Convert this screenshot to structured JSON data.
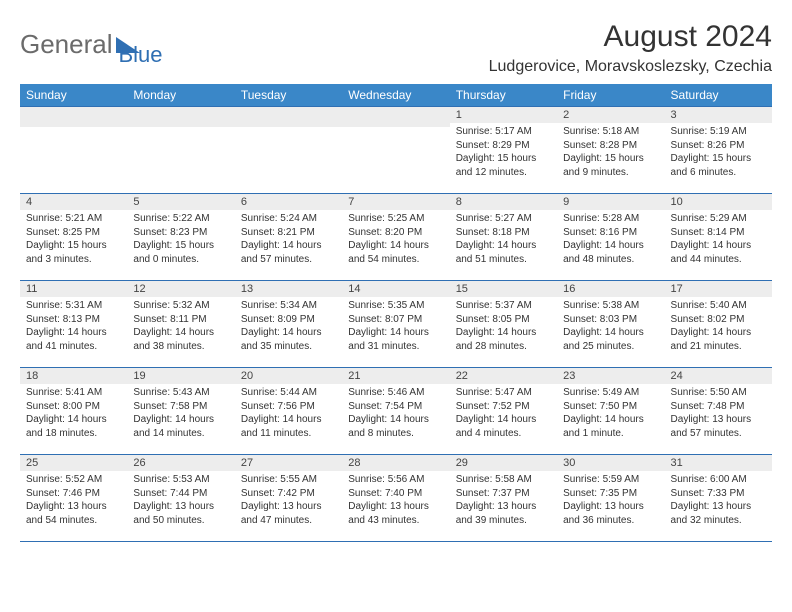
{
  "brand": {
    "text1": "General",
    "text2": "Blue",
    "tri_color": "#2f6fb3"
  },
  "title": "August 2024",
  "location": "Ludgerovice, Moravskoslezsky, Czechia",
  "colors": {
    "header_bg": "#3a87c8",
    "header_fg": "#ffffff",
    "row_border": "#2f6fb3",
    "daynum_bg": "#ededed",
    "text": "#333333"
  },
  "week_header": [
    "Sunday",
    "Monday",
    "Tuesday",
    "Wednesday",
    "Thursday",
    "Friday",
    "Saturday"
  ],
  "layout": {
    "first_weekday_index": 4,
    "days_in_month": 31
  },
  "days": {
    "1": {
      "sunrise": "5:17 AM",
      "sunset": "8:29 PM",
      "daylight": "15 hours and 12 minutes."
    },
    "2": {
      "sunrise": "5:18 AM",
      "sunset": "8:28 PM",
      "daylight": "15 hours and 9 minutes."
    },
    "3": {
      "sunrise": "5:19 AM",
      "sunset": "8:26 PM",
      "daylight": "15 hours and 6 minutes."
    },
    "4": {
      "sunrise": "5:21 AM",
      "sunset": "8:25 PM",
      "daylight": "15 hours and 3 minutes."
    },
    "5": {
      "sunrise": "5:22 AM",
      "sunset": "8:23 PM",
      "daylight": "15 hours and 0 minutes."
    },
    "6": {
      "sunrise": "5:24 AM",
      "sunset": "8:21 PM",
      "daylight": "14 hours and 57 minutes."
    },
    "7": {
      "sunrise": "5:25 AM",
      "sunset": "8:20 PM",
      "daylight": "14 hours and 54 minutes."
    },
    "8": {
      "sunrise": "5:27 AM",
      "sunset": "8:18 PM",
      "daylight": "14 hours and 51 minutes."
    },
    "9": {
      "sunrise": "5:28 AM",
      "sunset": "8:16 PM",
      "daylight": "14 hours and 48 minutes."
    },
    "10": {
      "sunrise": "5:29 AM",
      "sunset": "8:14 PM",
      "daylight": "14 hours and 44 minutes."
    },
    "11": {
      "sunrise": "5:31 AM",
      "sunset": "8:13 PM",
      "daylight": "14 hours and 41 minutes."
    },
    "12": {
      "sunrise": "5:32 AM",
      "sunset": "8:11 PM",
      "daylight": "14 hours and 38 minutes."
    },
    "13": {
      "sunrise": "5:34 AM",
      "sunset": "8:09 PM",
      "daylight": "14 hours and 35 minutes."
    },
    "14": {
      "sunrise": "5:35 AM",
      "sunset": "8:07 PM",
      "daylight": "14 hours and 31 minutes."
    },
    "15": {
      "sunrise": "5:37 AM",
      "sunset": "8:05 PM",
      "daylight": "14 hours and 28 minutes."
    },
    "16": {
      "sunrise": "5:38 AM",
      "sunset": "8:03 PM",
      "daylight": "14 hours and 25 minutes."
    },
    "17": {
      "sunrise": "5:40 AM",
      "sunset": "8:02 PM",
      "daylight": "14 hours and 21 minutes."
    },
    "18": {
      "sunrise": "5:41 AM",
      "sunset": "8:00 PM",
      "daylight": "14 hours and 18 minutes."
    },
    "19": {
      "sunrise": "5:43 AM",
      "sunset": "7:58 PM",
      "daylight": "14 hours and 14 minutes."
    },
    "20": {
      "sunrise": "5:44 AM",
      "sunset": "7:56 PM",
      "daylight": "14 hours and 11 minutes."
    },
    "21": {
      "sunrise": "5:46 AM",
      "sunset": "7:54 PM",
      "daylight": "14 hours and 8 minutes."
    },
    "22": {
      "sunrise": "5:47 AM",
      "sunset": "7:52 PM",
      "daylight": "14 hours and 4 minutes."
    },
    "23": {
      "sunrise": "5:49 AM",
      "sunset": "7:50 PM",
      "daylight": "14 hours and 1 minute."
    },
    "24": {
      "sunrise": "5:50 AM",
      "sunset": "7:48 PM",
      "daylight": "13 hours and 57 minutes."
    },
    "25": {
      "sunrise": "5:52 AM",
      "sunset": "7:46 PM",
      "daylight": "13 hours and 54 minutes."
    },
    "26": {
      "sunrise": "5:53 AM",
      "sunset": "7:44 PM",
      "daylight": "13 hours and 50 minutes."
    },
    "27": {
      "sunrise": "5:55 AM",
      "sunset": "7:42 PM",
      "daylight": "13 hours and 47 minutes."
    },
    "28": {
      "sunrise": "5:56 AM",
      "sunset": "7:40 PM",
      "daylight": "13 hours and 43 minutes."
    },
    "29": {
      "sunrise": "5:58 AM",
      "sunset": "7:37 PM",
      "daylight": "13 hours and 39 minutes."
    },
    "30": {
      "sunrise": "5:59 AM",
      "sunset": "7:35 PM",
      "daylight": "13 hours and 36 minutes."
    },
    "31": {
      "sunrise": "6:00 AM",
      "sunset": "7:33 PM",
      "daylight": "13 hours and 32 minutes."
    }
  },
  "labels": {
    "sunrise": "Sunrise:",
    "sunset": "Sunset:",
    "daylight": "Daylight:"
  }
}
